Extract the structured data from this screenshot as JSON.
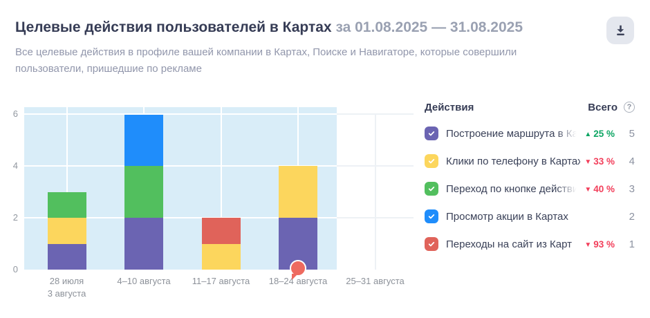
{
  "header": {
    "title": "Целевые действия пользователей в Картах",
    "period": "за 01.08.2025 — 31.08.2025",
    "subtitle_line1": "Все целевые действия в профиле вашей компании в Картах, Поиске и Навигаторе, которые совершили",
    "subtitle_line2": "пользователи, пришедшие по рекламе"
  },
  "chart_data": {
    "type": "bar",
    "stacked": true,
    "categories": [
      {
        "line1": "28 июля",
        "line2": "3 августа"
      },
      {
        "line1": "4–10 августа",
        "line2": ""
      },
      {
        "line1": "11–17 августа",
        "line2": ""
      },
      {
        "line1": "18–24 августа",
        "line2": ""
      },
      {
        "line1": "25–31 августа",
        "line2": ""
      }
    ],
    "series": [
      {
        "name": "Построение маршрута в Картах",
        "color": "#6b64b2",
        "values": [
          1,
          2,
          0,
          2,
          0
        ]
      },
      {
        "name": "Клики по телефону в Картах",
        "color": "#fcd65d",
        "values": [
          1,
          0,
          1,
          2,
          0
        ]
      },
      {
        "name": "Переход по кнопке действия из Карт",
        "color": "#52bf5e",
        "values": [
          1,
          2,
          0,
          0,
          0
        ]
      },
      {
        "name": "Просмотр акции в Картах",
        "color": "#1f8dfb",
        "values": [
          0,
          2,
          0,
          0,
          0
        ]
      },
      {
        "name": "Переходы на сайт из Карт",
        "color": "#e0635a",
        "values": [
          0,
          0,
          1,
          0,
          0
        ]
      }
    ],
    "yticks": [
      0,
      2,
      4,
      6
    ],
    "ylim": [
      0,
      6.28
    ],
    "grid": true,
    "plot_band_color": "#d9edf8",
    "grid_color_on_band": "#ffffff",
    "grid_color_off_band": "#edf1f5",
    "highlight_band_category_count": 4,
    "marker": {
      "category_index": 3,
      "type": "balloon",
      "color": "#ee6a5f"
    }
  },
  "legend": {
    "header_actions": "Действия",
    "header_total": "Всего",
    "help_icon": "?",
    "delta_up_color": "#0da563",
    "delta_down_color": "#f23e5a",
    "rows": [
      {
        "label": "Построение маршрута в Картах",
        "color": "#6b64b2",
        "delta_dir": "up",
        "delta": "25 %",
        "total": "5",
        "truncated": true
      },
      {
        "label": "Клики по телефону в Картах",
        "color": "#fcd65d",
        "delta_dir": "down",
        "delta": "33 %",
        "total": "4",
        "truncated": false
      },
      {
        "label": "Переход по кнопке действия из Карт",
        "color": "#52bf5e",
        "delta_dir": "down",
        "delta": "40 %",
        "total": "3",
        "truncated": true
      },
      {
        "label": "Просмотр акции в Картах",
        "color": "#1f8dfb",
        "delta_dir": "",
        "delta": "",
        "total": "2",
        "truncated": false
      },
      {
        "label": "Переходы на сайт из Карт",
        "color": "#e0635a",
        "delta_dir": "down",
        "delta": "93 %",
        "total": "1",
        "truncated": false
      }
    ]
  }
}
